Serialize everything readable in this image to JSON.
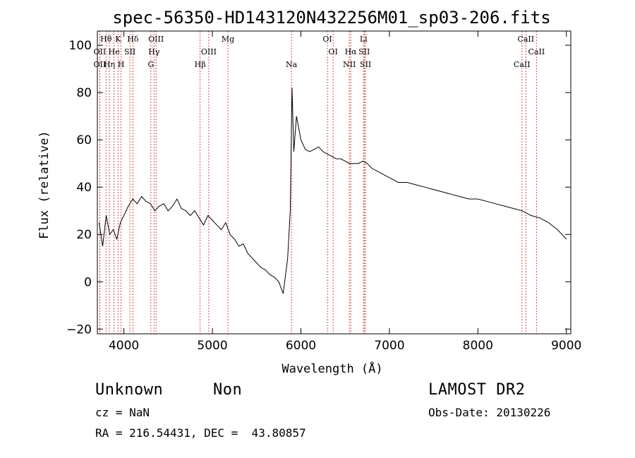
{
  "chart_data": {
    "type": "line",
    "title": "spec-56350-HD143120N432256M01_sp03-206.fits",
    "xlabel": "Wavelength (Å)",
    "ylabel": "Flux (relative)",
    "xlim": [
      3700,
      9050
    ],
    "ylim": [
      -22,
      106
    ],
    "xticks": [
      4000,
      5000,
      6000,
      7000,
      8000,
      9000
    ],
    "yticks": [
      -20,
      0,
      20,
      40,
      60,
      80,
      100
    ],
    "grid": false,
    "line_color": "#000000",
    "marker_color": "#cc2222",
    "spectrum": {
      "x": [
        3720,
        3760,
        3800,
        3840,
        3880,
        3920,
        3960,
        4000,
        4050,
        4100,
        4150,
        4200,
        4250,
        4300,
        4350,
        4400,
        4450,
        4500,
        4550,
        4600,
        4650,
        4700,
        4750,
        4800,
        4850,
        4900,
        4950,
        5000,
        5050,
        5100,
        5150,
        5200,
        5250,
        5300,
        5350,
        5400,
        5450,
        5500,
        5550,
        5600,
        5650,
        5700,
        5750,
        5800,
        5850,
        5880,
        5900,
        5920,
        5950,
        6000,
        6050,
        6100,
        6150,
        6200,
        6250,
        6300,
        6350,
        6400,
        6450,
        6500,
        6550,
        6600,
        6650,
        6700,
        6750,
        6800,
        6850,
        6900,
        6950,
        7000,
        7100,
        7200,
        7300,
        7400,
        7500,
        7600,
        7700,
        7800,
        7900,
        8000,
        8100,
        8200,
        8300,
        8400,
        8500,
        8600,
        8700,
        8800,
        8900,
        8950,
        9000
      ],
      "y": [
        25,
        15,
        28,
        20,
        22,
        18,
        25,
        28,
        32,
        35,
        33,
        36,
        34,
        33,
        30,
        32,
        33,
        30,
        32,
        35,
        31,
        30,
        28,
        30,
        27,
        24,
        28,
        26,
        24,
        22,
        25,
        20,
        18,
        15,
        16,
        12,
        10,
        8,
        6,
        5,
        3,
        2,
        0,
        -5,
        10,
        30,
        82,
        55,
        70,
        60,
        56,
        55,
        56,
        57,
        55,
        54,
        53,
        52,
        52,
        51,
        50,
        50,
        50,
        51,
        50,
        48,
        47,
        46,
        45,
        44,
        42,
        42,
        41,
        40,
        39,
        38,
        37,
        36,
        35,
        35,
        34,
        33,
        32,
        31,
        30,
        28,
        27,
        25,
        22,
        20,
        18
      ]
    },
    "line_markers": [
      {
        "label": "Hθ",
        "x": 3798,
        "row": 0
      },
      {
        "label": "K",
        "x": 3934,
        "row": 0
      },
      {
        "label": "Hδ",
        "x": 4102,
        "row": 0
      },
      {
        "label": "OIII",
        "x": 4363,
        "row": 0
      },
      {
        "label": "Mg",
        "x": 5175,
        "row": 0
      },
      {
        "label": "OI",
        "x": 6300,
        "row": 0
      },
      {
        "label": "Li",
        "x": 6708,
        "row": 0
      },
      {
        "label": "CaII",
        "x": 8542,
        "row": 0
      },
      {
        "label": "OII",
        "x": 3727,
        "row": 1
      },
      {
        "label": "He",
        "x": 3889,
        "row": 1
      },
      {
        "label": "SII",
        "x": 4068,
        "row": 1
      },
      {
        "label": "Hγ",
        "x": 4340,
        "row": 1
      },
      {
        "label": "OIII",
        "x": 4959,
        "row": 1
      },
      {
        "label": "OI",
        "x": 6364,
        "row": 1
      },
      {
        "label": "Hα",
        "x": 6563,
        "row": 1
      },
      {
        "label": "SII",
        "x": 6716,
        "row": 1
      },
      {
        "label": "CaII",
        "x": 8662,
        "row": 1
      },
      {
        "label": "OII",
        "x": 3727,
        "row": 2
      },
      {
        "label": "Hη",
        "x": 3835,
        "row": 2
      },
      {
        "label": "H",
        "x": 3968,
        "row": 2
      },
      {
        "label": "G",
        "x": 4305,
        "row": 2
      },
      {
        "label": "Hβ",
        "x": 4861,
        "row": 2
      },
      {
        "label": "Na",
        "x": 5893,
        "row": 2
      },
      {
        "label": "NII",
        "x": 6548,
        "row": 2
      },
      {
        "label": "SII",
        "x": 6731,
        "row": 2
      },
      {
        "label": "CaII",
        "x": 8498,
        "row": 2
      }
    ]
  },
  "info": {
    "object_type": "Unknown",
    "subclass": "Non",
    "survey": "LAMOST DR2",
    "cz": "cz = NaN",
    "obs_date": "Obs-Date: 20130226",
    "coords": "RA = 216.54431, DEC =  43.80857"
  }
}
